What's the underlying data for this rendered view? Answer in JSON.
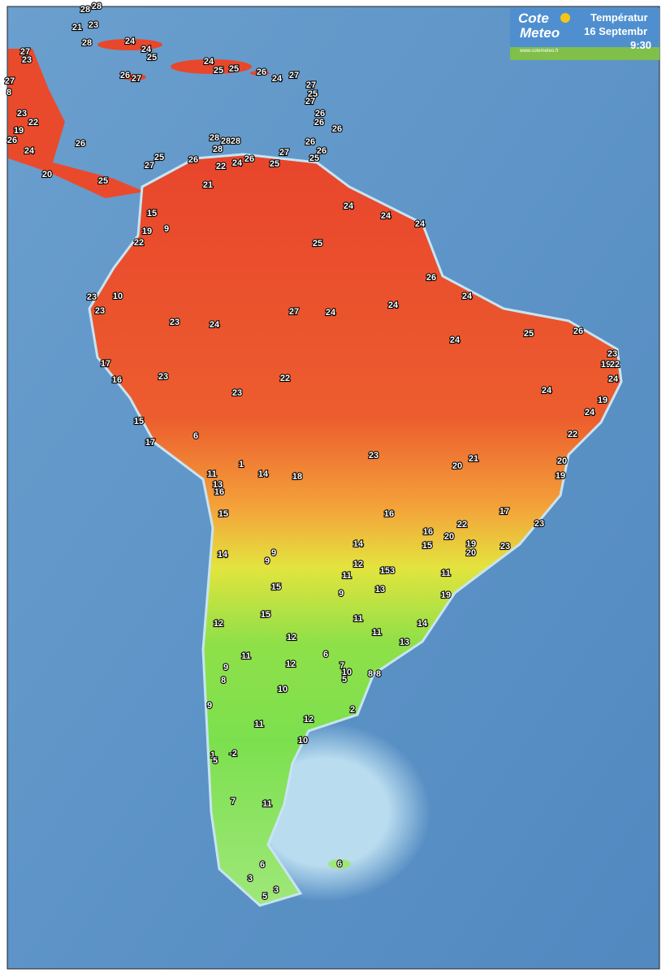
{
  "header": {
    "logo_top": "Cote",
    "logo_bottom": "Meteo",
    "url": "www.cotemeteo.fr",
    "title": "Températur",
    "date": "16 Septembr",
    "time": "9:30"
  },
  "temperatures": [
    28,
    28,
    21,
    23,
    28,
    24,
    27,
    23,
    24,
    25,
    27,
    8,
    24,
    25,
    25,
    26,
    24,
    27,
    26,
    27,
    27,
    25,
    27,
    23,
    22,
    26,
    26,
    26,
    19,
    26,
    26,
    24,
    28,
    28,
    28,
    28,
    26,
    26,
    27,
    25,
    27,
    26,
    24,
    26,
    22,
    25,
    25,
    20,
    25,
    21,
    24,
    24,
    24,
    15,
    19,
    9,
    22,
    25,
    26,
    24,
    23,
    10,
    23,
    24,
    27,
    24,
    23,
    24,
    25,
    26,
    24,
    23,
    17,
    19,
    22,
    22,
    23,
    16,
    24,
    23,
    24,
    19,
    24,
    15,
    22,
    6,
    17,
    23,
    21,
    20,
    20,
    1,
    11,
    14,
    18,
    19,
    13,
    16,
    15,
    17,
    16,
    22,
    23,
    16,
    20,
    19,
    14,
    15,
    23,
    20,
    9,
    14,
    9,
    12,
    15,
    3,
    11,
    11,
    15,
    13,
    9,
    19,
    15,
    11,
    12,
    14,
    11,
    12,
    13,
    11,
    6,
    12,
    9,
    7,
    10,
    5,
    8,
    8,
    8,
    10,
    9,
    2,
    12,
    11,
    10,
    1,
    5,
    -2,
    7,
    11,
    6,
    6,
    3,
    3,
    5
  ]
}
